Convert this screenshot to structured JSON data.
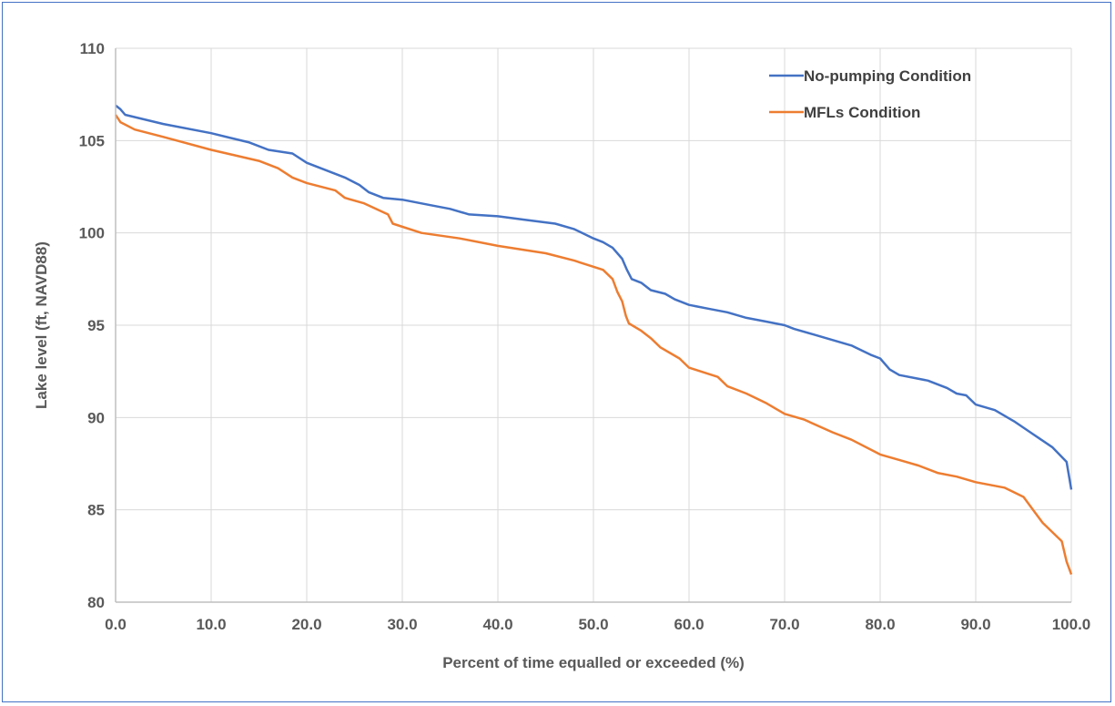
{
  "chart_data": {
    "type": "line",
    "title": "",
    "xlabel": "Percent of time equalled or exceeded (%)",
    "ylabel": "Lake level (ft, NAVD88)",
    "xlim": [
      0,
      100
    ],
    "ylim": [
      80,
      110
    ],
    "x_ticks": [
      0,
      10,
      20,
      30,
      40,
      50,
      60,
      70,
      80,
      90,
      100
    ],
    "x_tick_labels": [
      "0.0",
      "10.0",
      "20.0",
      "30.0",
      "40.0",
      "50.0",
      "60.0",
      "70.0",
      "80.0",
      "90.0",
      "100.0"
    ],
    "y_ticks": [
      80,
      85,
      90,
      95,
      100,
      105,
      110
    ],
    "y_tick_labels": [
      "80",
      "85",
      "90",
      "95",
      "100",
      "105",
      "110"
    ],
    "grid": true,
    "legend_position": "top-right",
    "series": [
      {
        "name": "No-pumping Condition",
        "color": "#4472c4",
        "points": [
          [
            0,
            106.9
          ],
          [
            0.5,
            106.7
          ],
          [
            1,
            106.4
          ],
          [
            5,
            105.9
          ],
          [
            10,
            105.4
          ],
          [
            14,
            104.9
          ],
          [
            16,
            104.5
          ],
          [
            18.5,
            104.3
          ],
          [
            20,
            103.8
          ],
          [
            22,
            103.4
          ],
          [
            24,
            103.0
          ],
          [
            25.5,
            102.6
          ],
          [
            26.5,
            102.2
          ],
          [
            28,
            101.9
          ],
          [
            30,
            101.8
          ],
          [
            33,
            101.5
          ],
          [
            35,
            101.3
          ],
          [
            37,
            101.0
          ],
          [
            40,
            100.9
          ],
          [
            43,
            100.7
          ],
          [
            46,
            100.5
          ],
          [
            48,
            100.2
          ],
          [
            50,
            99.7
          ],
          [
            51,
            99.5
          ],
          [
            52,
            99.2
          ],
          [
            53,
            98.6
          ],
          [
            53.5,
            98.0
          ],
          [
            54,
            97.5
          ],
          [
            55,
            97.3
          ],
          [
            56,
            96.9
          ],
          [
            57.5,
            96.7
          ],
          [
            58.5,
            96.4
          ],
          [
            60,
            96.1
          ],
          [
            62,
            95.9
          ],
          [
            64,
            95.7
          ],
          [
            66,
            95.4
          ],
          [
            68,
            95.2
          ],
          [
            70,
            95.0
          ],
          [
            71,
            94.8
          ],
          [
            73,
            94.5
          ],
          [
            75,
            94.2
          ],
          [
            77,
            93.9
          ],
          [
            79,
            93.4
          ],
          [
            80,
            93.2
          ],
          [
            81,
            92.6
          ],
          [
            82,
            92.3
          ],
          [
            85,
            92.0
          ],
          [
            87,
            91.6
          ],
          [
            88,
            91.3
          ],
          [
            89,
            91.2
          ],
          [
            90,
            90.7
          ],
          [
            92,
            90.4
          ],
          [
            94,
            89.8
          ],
          [
            96,
            89.1
          ],
          [
            98,
            88.4
          ],
          [
            99.5,
            87.6
          ],
          [
            100,
            86.1
          ]
        ]
      },
      {
        "name": "MFLs Condition",
        "color": "#ed7d31",
        "points": [
          [
            0,
            106.4
          ],
          [
            0.5,
            106.0
          ],
          [
            2,
            105.6
          ],
          [
            5,
            105.2
          ],
          [
            10,
            104.5
          ],
          [
            15,
            103.9
          ],
          [
            17,
            103.5
          ],
          [
            18.5,
            103.0
          ],
          [
            20,
            102.7
          ],
          [
            23,
            102.3
          ],
          [
            24,
            101.9
          ],
          [
            26,
            101.6
          ],
          [
            28.5,
            101.0
          ],
          [
            29,
            100.5
          ],
          [
            32,
            100.0
          ],
          [
            36,
            99.7
          ],
          [
            40,
            99.3
          ],
          [
            45,
            98.9
          ],
          [
            48,
            98.5
          ],
          [
            51,
            98.0
          ],
          [
            52,
            97.5
          ],
          [
            52.5,
            96.8
          ],
          [
            53,
            96.3
          ],
          [
            53.4,
            95.5
          ],
          [
            53.7,
            95.1
          ],
          [
            55,
            94.7
          ],
          [
            56,
            94.3
          ],
          [
            57,
            93.8
          ],
          [
            59,
            93.2
          ],
          [
            60,
            92.7
          ],
          [
            63,
            92.2
          ],
          [
            64,
            91.7
          ],
          [
            66,
            91.3
          ],
          [
            68,
            90.8
          ],
          [
            70,
            90.2
          ],
          [
            72,
            89.9
          ],
          [
            75,
            89.2
          ],
          [
            77,
            88.8
          ],
          [
            80,
            88.0
          ],
          [
            82,
            87.7
          ],
          [
            84,
            87.4
          ],
          [
            86,
            87.0
          ],
          [
            88,
            86.8
          ],
          [
            90,
            86.5
          ],
          [
            93,
            86.2
          ],
          [
            95,
            85.7
          ],
          [
            96,
            85.0
          ],
          [
            97,
            84.3
          ],
          [
            98,
            83.8
          ],
          [
            99,
            83.3
          ],
          [
            99.5,
            82.2
          ],
          [
            100,
            81.5
          ]
        ]
      }
    ]
  }
}
